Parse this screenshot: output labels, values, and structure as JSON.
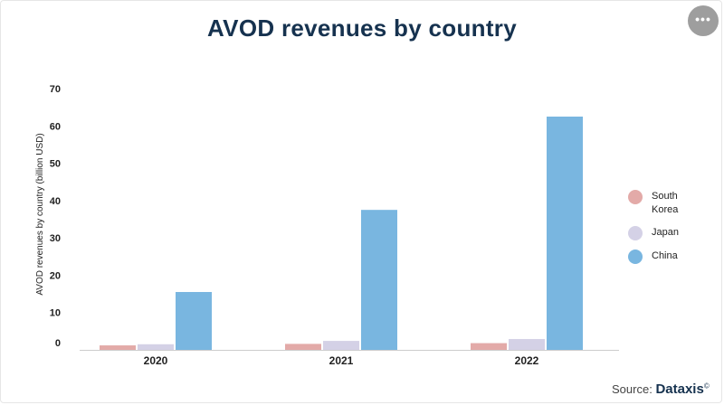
{
  "title": "AVOD revenues by country",
  "menu_icon": "more-horizontal-icon",
  "chart_data": {
    "type": "bar",
    "categories": [
      "2020",
      "2021",
      "2022"
    ],
    "series": [
      {
        "name": "South Korea",
        "color": "#e3aaa8",
        "values": [
          1.2,
          1.6,
          1.8
        ]
      },
      {
        "name": "Japan",
        "color": "#d4d1e6",
        "values": [
          1.5,
          2.4,
          2.9
        ]
      },
      {
        "name": "China",
        "color": "#79b6e0",
        "values": [
          15.5,
          37.5,
          62.5
        ]
      }
    ],
    "title": "AVOD revenues by country",
    "xlabel": "",
    "ylabel": "AVOD revenues by country (billion USD)",
    "ylim": [
      0,
      70
    ],
    "yticks": [
      0,
      10,
      20,
      30,
      40,
      50,
      60,
      70
    ],
    "grid": false,
    "legend_position": "right"
  },
  "legend": [
    {
      "label": "South Korea",
      "color": "#e3aaa8"
    },
    {
      "label": "Japan",
      "color": "#d4d1e6"
    },
    {
      "label": "China",
      "color": "#79b6e0"
    }
  ],
  "source": {
    "prefix": "Source:",
    "brand": "Dataxis",
    "mark": "©"
  }
}
